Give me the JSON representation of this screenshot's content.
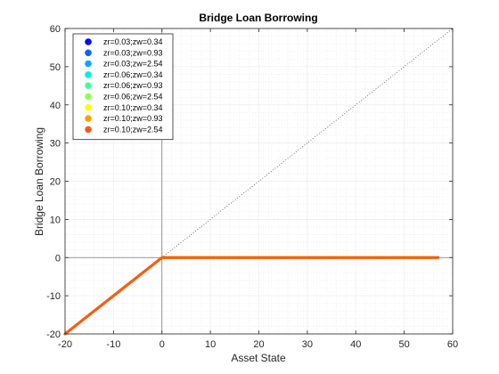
{
  "chart_data": {
    "type": "scatter",
    "title": "Bridge Loan Borrowing",
    "xlabel": "Asset State",
    "ylabel": "Bridge Loan Borrowing",
    "xlim": [
      -20,
      60
    ],
    "ylim": [
      -20,
      60
    ],
    "xticks": [
      -20,
      -10,
      0,
      10,
      20,
      30,
      40,
      50,
      60
    ],
    "yticks": [
      -20,
      -10,
      0,
      10,
      20,
      30,
      40,
      50,
      60
    ],
    "grid": "minor-dotted",
    "legend_position": "top-left",
    "reference_line": {
      "style": "dotted",
      "color": "#555555",
      "from": [
        -20,
        -20
      ],
      "to": [
        60,
        60
      ]
    },
    "zero_lines": {
      "x": 0,
      "y": 0
    },
    "series_shape": {
      "x_breakpoints": [
        -20,
        0,
        57
      ],
      "y_values": [
        -20,
        0,
        0
      ]
    },
    "series": [
      {
        "name": "zr=0.03;zw=0.34",
        "color": "#0000ff"
      },
      {
        "name": "zr=0.03;zw=0.93",
        "color": "#0066ff"
      },
      {
        "name": "zr=0.03;zw=2.54",
        "color": "#00aaff"
      },
      {
        "name": "zr=0.06;zw=0.34",
        "color": "#00eedd"
      },
      {
        "name": "zr=0.06;zw=0.93",
        "color": "#40ffa0"
      },
      {
        "name": "zr=0.06;zw=2.54",
        "color": "#90ff50"
      },
      {
        "name": "zr=0.10;zw=0.34",
        "color": "#ffff00"
      },
      {
        "name": "zr=0.10;zw=0.93",
        "color": "#ffa000"
      },
      {
        "name": "zr=0.10;zw=2.54",
        "color": "#ff5a14"
      }
    ]
  }
}
